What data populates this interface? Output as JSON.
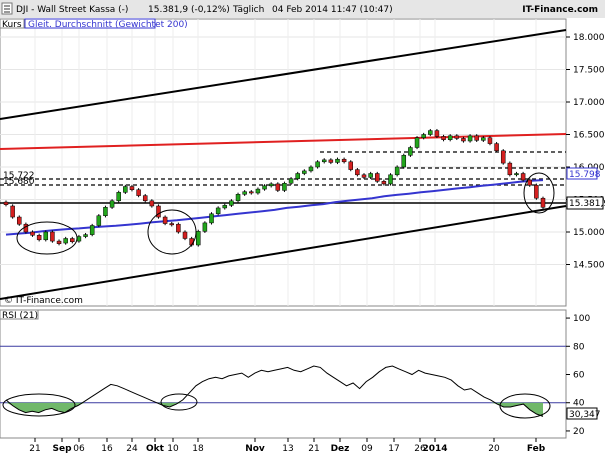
{
  "header": {
    "title": "DJI - Wall Street Kassa (-)",
    "quote": "15.381,9 (-0,12%)",
    "period": "Täglich",
    "datetime": "04 Feb 2014 11:47 (10:47)",
    "brand": "IT-Finance.com"
  },
  "main_panel": {
    "tag": "Kurs",
    "legend": "Gleit. Durchschnitt (Gewichtet 200)",
    "watermark": "© IT-Finance.com",
    "level_labels": [
      "15.722",
      "15.680"
    ],
    "ma_value": "15.798",
    "last_value": "15.381,9"
  },
  "rsi_panel": {
    "label": "RSI (21)",
    "last_value": "30,347"
  },
  "colors": {
    "up_candle": "#22a51c",
    "down_candle": "#d42020",
    "ma_line": "#3535d0",
    "red_line": "#e02020",
    "rsi_line": "#000000",
    "rsi_fill": "#70b86a",
    "rsi_levels": "#3a3aa0"
  },
  "chart_data": [
    {
      "type": "candlestick",
      "name": "DJI daily",
      "ylim": [
        14200,
        18200
      ],
      "y_ticks": [
        "14.500",
        "15.000",
        "15.500",
        "16.000",
        "16.500",
        "17.000",
        "17.500",
        "18.000"
      ],
      "x_ticks": [
        "21",
        "Sep",
        "06",
        "16",
        "24",
        "Okt",
        "10",
        "18",
        "Nov",
        "13",
        "21",
        "Dez",
        "09",
        "17",
        "26",
        "2014",
        "20",
        "Feb"
      ],
      "series": [
        {
          "name": "weighted-ma-200",
          "values": [
            14960,
            14975,
            14990,
            15010,
            15030,
            15045,
            15055,
            15070,
            15085,
            15095,
            15110,
            15130,
            15150,
            15165,
            15180,
            15200,
            15220,
            15240,
            15260,
            15280,
            15300,
            15320,
            15340,
            15370,
            15390,
            15410,
            15430,
            15460,
            15480,
            15500,
            15520,
            15550,
            15570,
            15590,
            15610,
            15630,
            15650,
            15670,
            15690,
            15710,
            15730,
            15750,
            15770,
            15790,
            15798
          ]
        }
      ],
      "candles": [
        {
          "o": 15460,
          "c": 15420
        },
        {
          "o": 15400,
          "c": 15230
        },
        {
          "o": 15230,
          "c": 15120
        },
        {
          "o": 15120,
          "c": 15000
        },
        {
          "o": 15000,
          "c": 14950
        },
        {
          "o": 14950,
          "c": 14880
        },
        {
          "o": 14880,
          "c": 15000
        },
        {
          "o": 15000,
          "c": 14860
        },
        {
          "o": 14860,
          "c": 14820
        },
        {
          "o": 14830,
          "c": 14900
        },
        {
          "o": 14900,
          "c": 14850
        },
        {
          "o": 14860,
          "c": 14930
        },
        {
          "o": 14930,
          "c": 14960
        },
        {
          "o": 14960,
          "c": 15100
        },
        {
          "o": 15100,
          "c": 15250
        },
        {
          "o": 15250,
          "c": 15380
        },
        {
          "o": 15380,
          "c": 15480
        },
        {
          "o": 15480,
          "c": 15610
        },
        {
          "o": 15610,
          "c": 15700
        },
        {
          "o": 15700,
          "c": 15650
        },
        {
          "o": 15650,
          "c": 15560
        },
        {
          "o": 15560,
          "c": 15480
        },
        {
          "o": 15480,
          "c": 15400
        },
        {
          "o": 15400,
          "c": 15230
        },
        {
          "o": 15230,
          "c": 15130
        },
        {
          "o": 15130,
          "c": 15110
        },
        {
          "o": 15120,
          "c": 15000
        },
        {
          "o": 15000,
          "c": 14900
        },
        {
          "o": 14900,
          "c": 14800
        },
        {
          "o": 14800,
          "c": 15010
        },
        {
          "o": 15010,
          "c": 15140
        },
        {
          "o": 15140,
          "c": 15280
        },
        {
          "o": 15280,
          "c": 15370
        },
        {
          "o": 15370,
          "c": 15410
        },
        {
          "o": 15410,
          "c": 15480
        },
        {
          "o": 15480,
          "c": 15580
        },
        {
          "o": 15580,
          "c": 15620
        },
        {
          "o": 15620,
          "c": 15600
        },
        {
          "o": 15600,
          "c": 15660
        },
        {
          "o": 15660,
          "c": 15710
        },
        {
          "o": 15710,
          "c": 15740
        },
        {
          "o": 15740,
          "c": 15640
        },
        {
          "o": 15640,
          "c": 15750
        },
        {
          "o": 15750,
          "c": 15820
        },
        {
          "o": 15820,
          "c": 15900
        },
        {
          "o": 15900,
          "c": 15940
        },
        {
          "o": 15940,
          "c": 16000
        },
        {
          "o": 16000,
          "c": 16080
        },
        {
          "o": 16080,
          "c": 16110
        },
        {
          "o": 16110,
          "c": 16070
        },
        {
          "o": 16070,
          "c": 16120
        },
        {
          "o": 16120,
          "c": 16080
        },
        {
          "o": 16080,
          "c": 15960
        },
        {
          "o": 15960,
          "c": 15880
        },
        {
          "o": 15880,
          "c": 15840
        },
        {
          "o": 15840,
          "c": 15900
        },
        {
          "o": 15900,
          "c": 15780
        },
        {
          "o": 15780,
          "c": 15740
        },
        {
          "o": 15740,
          "c": 15880
        },
        {
          "o": 15880,
          "c": 16000
        },
        {
          "o": 16000,
          "c": 16180
        },
        {
          "o": 16180,
          "c": 16300
        },
        {
          "o": 16300,
          "c": 16450
        },
        {
          "o": 16450,
          "c": 16500
        },
        {
          "o": 16500,
          "c": 16560
        },
        {
          "o": 16560,
          "c": 16470
        },
        {
          "o": 16470,
          "c": 16420
        },
        {
          "o": 16420,
          "c": 16480
        },
        {
          "o": 16480,
          "c": 16440
        },
        {
          "o": 16440,
          "c": 16400
        },
        {
          "o": 16400,
          "c": 16480
        },
        {
          "o": 16480,
          "c": 16410
        },
        {
          "o": 16410,
          "c": 16450
        },
        {
          "o": 16450,
          "c": 16360
        },
        {
          "o": 16360,
          "c": 16250
        },
        {
          "o": 16250,
          "c": 16060
        },
        {
          "o": 16060,
          "c": 15880
        },
        {
          "o": 15880,
          "c": 15900
        },
        {
          "o": 15900,
          "c": 15800
        },
        {
          "o": 15800,
          "c": 15720
        },
        {
          "o": 15720,
          "c": 15520
        },
        {
          "o": 15520,
          "c": 15380
        }
      ]
    },
    {
      "type": "line",
      "name": "RSI (21)",
      "ylim": [
        15,
        105
      ],
      "y_ticks": [
        "20",
        "40",
        "60",
        "80",
        "100"
      ],
      "levels": [
        40,
        80
      ],
      "values": [
        42,
        38,
        35,
        33,
        34,
        33,
        35,
        36,
        34,
        33,
        36,
        38,
        41,
        44,
        47,
        50,
        53,
        52,
        50,
        48,
        46,
        44,
        42,
        40,
        38,
        37,
        39,
        42,
        47,
        52,
        55,
        57,
        58,
        57,
        59,
        60,
        61,
        58,
        61,
        63,
        62,
        63,
        64,
        65,
        63,
        62,
        64,
        66,
        65,
        61,
        58,
        55,
        52,
        54,
        50,
        55,
        58,
        62,
        65,
        66,
        64,
        62,
        60,
        63,
        61,
        60,
        59,
        58,
        56,
        52,
        49,
        50,
        47,
        44,
        42,
        39,
        37,
        37,
        38,
        39,
        35,
        32,
        30.3
      ]
    }
  ]
}
